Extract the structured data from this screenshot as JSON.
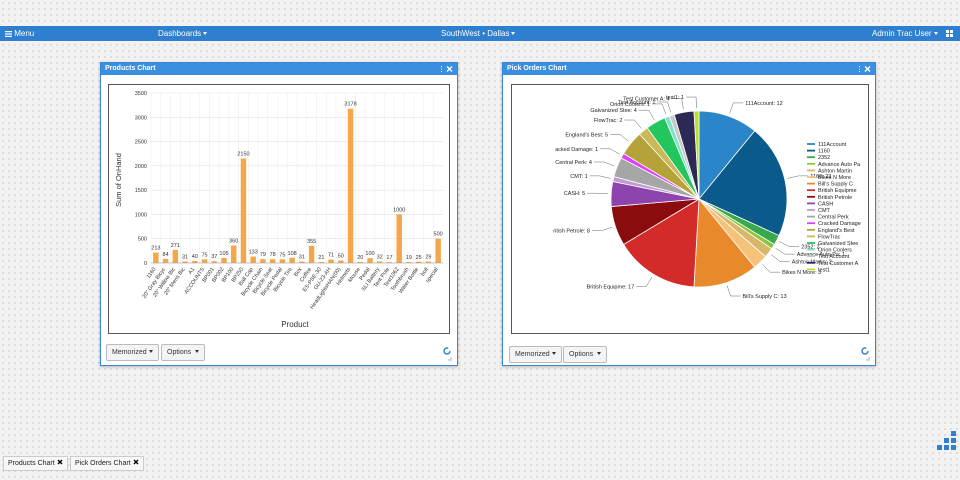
{
  "nav": {
    "menu": "Menu",
    "dashboards": "Dashboards",
    "location": "SouthWest • Dallas",
    "user": "Admin Trac User"
  },
  "panels": [
    {
      "title": "Products Chart"
    },
    {
      "title": "Pick Orders Chart"
    }
  ],
  "buttons": {
    "memorized": "Memorized",
    "options": "Options"
  },
  "tabs": [
    "Products Chart",
    "Pick Orders Chart"
  ],
  "chart_data": [
    {
      "type": "bar",
      "ylabel": "Sum of OnHand",
      "xlabel": "Product",
      "color": "#f5a54a",
      "grid": true,
      "categories": [
        "1160",
        "20\" Gray Bicyc",
        "20\" Willow Bic",
        "20\" Mens Bic",
        "A1",
        "ACCOUNTS",
        "BP001",
        "BP002",
        "BP100",
        "BP250",
        "Ball Cap",
        "Bicycle Chain",
        "Bicycle Seat",
        "Bicycle Pedal",
        "Bicycle Tire",
        "Box",
        "Coffee",
        "ES-PSE-30",
        "GU-23-AH",
        "HeadLightsHAN(00)",
        "Helmets",
        "Mouse",
        "Pedal",
        "SLI Battery",
        "Tent Pole",
        "Test1062",
        "Toothbrush",
        "Water Bottle",
        "bolt",
        "special"
      ],
      "values": [
        213,
        84,
        271,
        31,
        40,
        75,
        37,
        105,
        360,
        2150,
        133,
        79,
        78,
        75,
        108,
        31,
        355,
        21,
        71,
        50,
        3178,
        20,
        100,
        32,
        17,
        1000,
        19,
        25,
        29,
        500
      ],
      "ylim": [
        0,
        3500
      ],
      "yticks": [
        0,
        500,
        1000,
        1500,
        2000,
        2500,
        3000,
        3500
      ]
    },
    {
      "type": "pie",
      "categories": [
        "111Account",
        "1160",
        "2352",
        "Advance Auto Pa",
        "Ashton Martin",
        "Bikes N More",
        "Bill's Supply C",
        "British Equipme",
        "British Petrole",
        "CASH",
        "CMT",
        "Central Perk",
        "Cracked Damage",
        "England's Best",
        "FlowTrac",
        "Galvanized Stee",
        "Orion Coolers",
        "Test Account",
        "Test Customer A",
        "test1"
      ],
      "values": [
        12,
        23,
        2,
        1,
        2,
        3,
        13,
        17,
        8,
        5,
        1,
        4,
        1,
        5,
        2,
        4,
        1,
        1,
        4,
        1
      ],
      "value_labels": [
        "111Account: 12",
        "1160: 23",
        "2352: 2",
        "Advance Auto Pa: 1",
        "Ashton Martin: 2",
        "Bikes N More: 3",
        "Bill's Supply C: 13",
        "British Equipme: 17",
        "ritish Petrole: 8",
        "CASH: 5",
        "CMT: 1",
        "Central Perk: 4",
        "acked Damage: 1",
        "England's Best: 5",
        "FlowTrac: 2",
        "Galvanized Stee: 4",
        "Orion Coolers: 1",
        "Test Account: 1",
        "Test Customer A: 4",
        "test1: 1"
      ],
      "colors": [
        "#2a86c8",
        "#0b5a8c",
        "#3aa84c",
        "#8cc63f",
        "#d8b66a",
        "#f6c27a",
        "#e8892b",
        "#d32a2a",
        "#8a0c0c",
        "#8e44ad",
        "#c39bd3",
        "#a6a6a6",
        "#e040fb",
        "#b5a33a",
        "#cbb858",
        "#22c55e",
        "#7fe3c9",
        "#c8c8c8",
        "#2c2a54",
        "#b7e22b"
      ],
      "legend": "right"
    }
  ]
}
